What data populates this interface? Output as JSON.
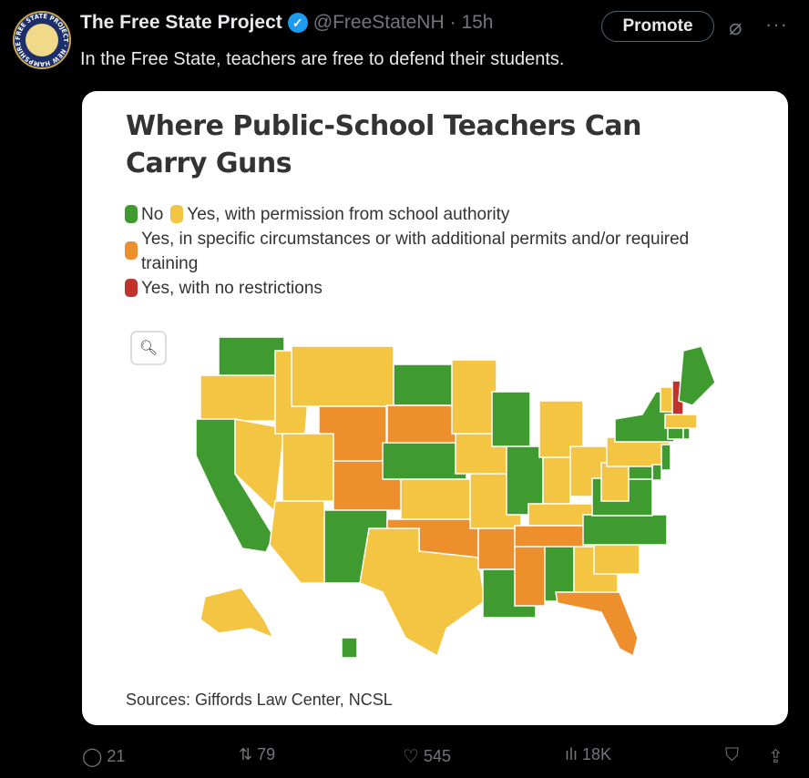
{
  "tweet": {
    "author_name": "The Free State Project",
    "handle": "@FreeStateNH",
    "time": "· 15h",
    "promote_label": "Promote",
    "more_label": "···",
    "text": "In the Free State, teachers are free to defend their students.",
    "avatar_text": "FREE STATE PROJECT · NEW HAMPSHIRE"
  },
  "card": {
    "title": "Where Public-School Teachers Can Carry Guns",
    "legend": [
      {
        "key": "no",
        "label": "No",
        "color": "#3f9a2f"
      },
      {
        "key": "perm",
        "label": "Yes, with permission from school authority",
        "color": "#f4c542"
      },
      {
        "key": "spec",
        "label": "Yes, in specific circumstances or with additional permits and/or required training",
        "color": "#ee8f2e"
      },
      {
        "key": "none",
        "label": "Yes, with no restrictions",
        "color": "#c0322b"
      }
    ],
    "sources": "Sources: Giffords Law Center, NCSL",
    "states": {
      "WA": "no",
      "OR": "perm",
      "CA": "no",
      "NV": "perm",
      "ID": "perm",
      "MT": "perm",
      "WY": "spec",
      "UT": "perm",
      "AZ": "perm",
      "CO": "spec",
      "NM": "no",
      "ND": "no",
      "SD": "spec",
      "NE": "no",
      "KS": "perm",
      "OK": "spec",
      "TX": "perm",
      "MN": "perm",
      "IA": "perm",
      "MO": "perm",
      "AR": "spec",
      "LA": "no",
      "WI": "no",
      "IL": "no",
      "MI": "perm",
      "IN": "perm",
      "OH": "perm",
      "KY": "perm",
      "TN": "spec",
      "MS": "spec",
      "AL": "no",
      "GA": "perm",
      "FL": "spec",
      "SC": "perm",
      "NC": "no",
      "VA": "no",
      "WV": "perm",
      "PA": "perm",
      "NY": "no",
      "VT": "perm",
      "NH": "none",
      "ME": "no",
      "MA": "perm",
      "CT": "no",
      "RI": "no",
      "NJ": "no",
      "DE": "no",
      "MD": "no",
      "AK": "perm",
      "HI": "no"
    }
  },
  "actions": {
    "replies": "21",
    "reposts": "79",
    "likes": "545",
    "views": "18K"
  }
}
